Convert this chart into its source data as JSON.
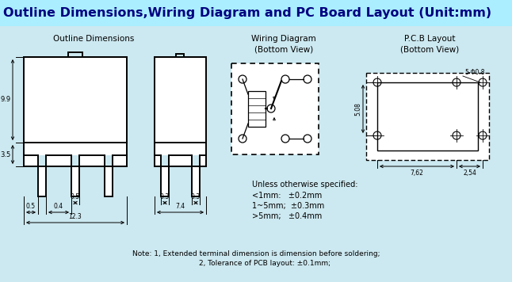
{
  "title": "Outline Dimensions,Wiring Diagram and PC Board Layout (Unit:mm)",
  "title_bg": "#aaeeff",
  "title_color": "#000080",
  "bg_color": "#cce8f0",
  "section1_label": "Outline Dimensions",
  "section2_label": "Wiring Diagram\n(Bottom View)",
  "section3_label": "P.C.B Layout\n(Bottom View)",
  "note_line1": "Note: 1, Extended terminal dimension is dimension before soldering;",
  "note_line2": "        2, Tolerance of PCB layout: ±0.1mm;",
  "unless_text": "Unless otherwise specified:",
  "tol1": "<1mm:   ±0.2mm",
  "tol2": "1~5mm;  ±0.3mm",
  "tol3": ">5mm;   ±0.4mm"
}
